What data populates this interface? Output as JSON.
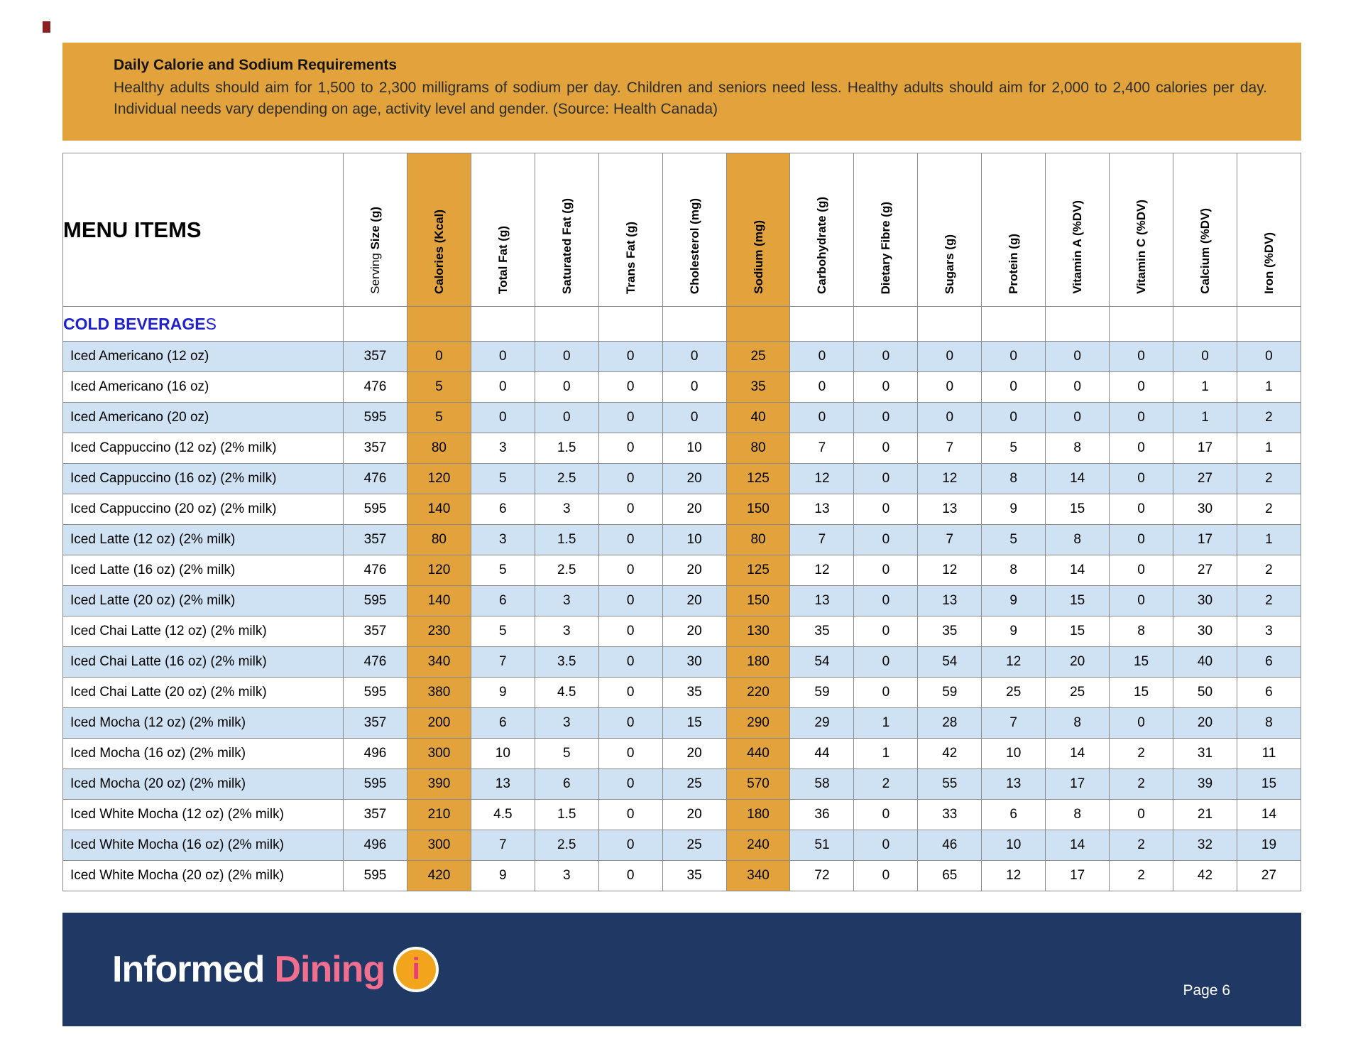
{
  "banner": {
    "title": "Daily Calorie and Sodium Requirements",
    "body": "Healthy adults should aim for 1,500 to 2,300 milligrams of sodium per day. Children and seniors need less. Healthy adults should aim for 2,000 to 2,400 calories per day. Individual needs vary depending on age, activity level and gender. (Source: Health Canada)"
  },
  "table": {
    "menu_items_label": "MENU ITEMS",
    "columns": [
      {
        "key": "serving-size",
        "prefix": "Serving ",
        "label": "Size (g)",
        "orange": false
      },
      {
        "key": "calories",
        "prefix": "",
        "label": "Calories (Kcal)",
        "orange": true
      },
      {
        "key": "total-fat",
        "prefix": "",
        "label": "Total Fat (g)",
        "orange": false
      },
      {
        "key": "saturated-fat",
        "prefix": "",
        "label": "Saturated Fat (g)",
        "orange": false
      },
      {
        "key": "trans-fat",
        "prefix": "",
        "label": "Trans Fat (g)",
        "orange": false
      },
      {
        "key": "cholesterol",
        "prefix": "",
        "label": "Cholesterol (mg)",
        "orange": false
      },
      {
        "key": "sodium",
        "prefix": "",
        "label": "Sodium (mg)",
        "orange": true
      },
      {
        "key": "carbohydrate",
        "prefix": "",
        "label": "Carbohydrate (g)",
        "orange": false
      },
      {
        "key": "dietary-fibre",
        "prefix": "",
        "label": "Dietary Fibre (g)",
        "orange": false
      },
      {
        "key": "sugars",
        "prefix": "",
        "label": "Sugars  (g)",
        "orange": false
      },
      {
        "key": "protein",
        "prefix": "",
        "label": "Protein (g)",
        "orange": false
      },
      {
        "key": "vitamin-a",
        "prefix": "",
        "label": "Vitamin A (%DV)",
        "orange": false
      },
      {
        "key": "vitamin-c",
        "prefix": "",
        "label": "Vitamin C (%DV)",
        "orange": false
      },
      {
        "key": "calcium",
        "prefix": "",
        "label": "Calcium (%DV)",
        "orange": false
      },
      {
        "key": "iron",
        "prefix": "",
        "label": "Iron (%DV)",
        "orange": false
      }
    ],
    "section": {
      "bold_part": "COLD BEVERAGE",
      "regular_part": "S"
    },
    "rows": [
      {
        "name": "Iced Americano (12 oz)",
        "values": [
          357,
          0,
          0,
          0,
          0,
          0,
          25,
          0,
          0,
          0,
          0,
          0,
          0,
          0,
          0
        ]
      },
      {
        "name": "Iced Americano (16 oz)",
        "values": [
          476,
          5,
          0,
          0,
          0,
          0,
          35,
          0,
          0,
          0,
          0,
          0,
          0,
          1,
          1
        ]
      },
      {
        "name": "Iced Americano (20 oz)",
        "values": [
          595,
          5,
          0,
          0,
          0,
          0,
          40,
          0,
          0,
          0,
          0,
          0,
          0,
          1,
          2
        ]
      },
      {
        "name": "Iced Cappuccino (12 oz) (2% milk)",
        "values": [
          357,
          80,
          3,
          1.5,
          0,
          10,
          80,
          7,
          0,
          7,
          5,
          8,
          0,
          17,
          1
        ]
      },
      {
        "name": "Iced Cappuccino (16 oz) (2% milk)",
        "values": [
          476,
          120,
          5,
          2.5,
          0,
          20,
          125,
          12,
          0,
          12,
          8,
          14,
          0,
          27,
          2
        ]
      },
      {
        "name": "Iced Cappuccino (20 oz) (2% milk)",
        "values": [
          595,
          140,
          6,
          3,
          0,
          20,
          150,
          13,
          0,
          13,
          9,
          15,
          0,
          30,
          2
        ]
      },
      {
        "name": "Iced Latte (12 oz) (2% milk)",
        "values": [
          357,
          80,
          3,
          1.5,
          0,
          10,
          80,
          7,
          0,
          7,
          5,
          8,
          0,
          17,
          1
        ]
      },
      {
        "name": "Iced Latte (16 oz) (2% milk)",
        "values": [
          476,
          120,
          5,
          2.5,
          0,
          20,
          125,
          12,
          0,
          12,
          8,
          14,
          0,
          27,
          2
        ]
      },
      {
        "name": "Iced Latte (20 oz) (2% milk)",
        "values": [
          595,
          140,
          6,
          3,
          0,
          20,
          150,
          13,
          0,
          13,
          9,
          15,
          0,
          30,
          2
        ]
      },
      {
        "name": "Iced Chai Latte (12 oz) (2% milk)",
        "values": [
          357,
          230,
          5,
          3,
          0,
          20,
          130,
          35,
          0,
          35,
          9,
          15,
          8,
          30,
          3
        ]
      },
      {
        "name": "Iced Chai Latte (16 oz) (2% milk)",
        "values": [
          476,
          340,
          7,
          3.5,
          0,
          30,
          180,
          54,
          0,
          54,
          12,
          20,
          15,
          40,
          6
        ]
      },
      {
        "name": "Iced Chai Latte (20 oz) (2% milk)",
        "values": [
          595,
          380,
          9,
          4.5,
          0,
          35,
          220,
          59,
          0,
          59,
          25,
          25,
          15,
          50,
          6
        ]
      },
      {
        "name": "Iced Mocha (12 oz) (2% milk)",
        "values": [
          357,
          200,
          6,
          3,
          0,
          15,
          290,
          29,
          1,
          28,
          7,
          8,
          0,
          20,
          8
        ]
      },
      {
        "name": "Iced Mocha (16 oz) (2% milk)",
        "values": [
          496,
          300,
          10,
          5,
          0,
          20,
          440,
          44,
          1,
          42,
          10,
          14,
          2,
          31,
          11
        ]
      },
      {
        "name": "Iced Mocha (20 oz) (2% milk)",
        "values": [
          595,
          390,
          13,
          6,
          0,
          25,
          570,
          58,
          2,
          55,
          13,
          17,
          2,
          39,
          15
        ]
      },
      {
        "name": "Iced White Mocha (12 oz) (2% milk)",
        "values": [
          357,
          210,
          4.5,
          1.5,
          0,
          20,
          180,
          36,
          0,
          33,
          6,
          8,
          0,
          21,
          14
        ]
      },
      {
        "name": "Iced White Mocha (16 oz) (2% milk)",
        "values": [
          496,
          300,
          7,
          2.5,
          0,
          25,
          240,
          51,
          0,
          46,
          10,
          14,
          2,
          32,
          19
        ]
      },
      {
        "name": "Iced White Mocha (20 oz) (2% milk)",
        "values": [
          595,
          420,
          9,
          3,
          0,
          35,
          340,
          72,
          0,
          65,
          12,
          17,
          2,
          42,
          27
        ]
      }
    ]
  },
  "footer": {
    "logo_informed": "Informed",
    "logo_dining": "Dining",
    "logo_icon_letter": "i",
    "page_label": "Page 6"
  },
  "colors": {
    "banner_orange": "#E2A33C",
    "highlight_column_orange": "#E2A33C",
    "row_blue": "#CFE2F3",
    "footer_navy": "#1F3864",
    "section_blue": "#2121CD",
    "logo_pink": "#F06E8E",
    "logo_circle_orange": "#F2A41C"
  }
}
